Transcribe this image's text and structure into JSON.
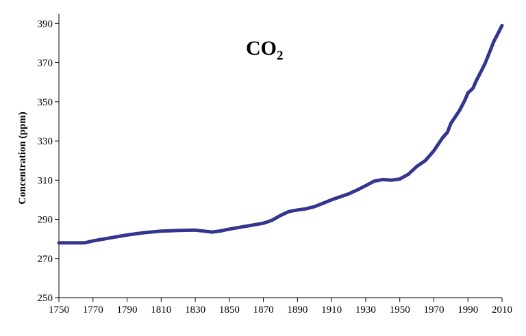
{
  "chart_data": {
    "type": "line",
    "title": "CO",
    "title_subscript": "2",
    "xlabel": "",
    "ylabel": "Concentration (ppm)",
    "xlim": [
      1750,
      2010
    ],
    "ylim": [
      250,
      395
    ],
    "grid": false,
    "x_ticks": [
      1750,
      1770,
      1790,
      1810,
      1830,
      1850,
      1870,
      1890,
      1910,
      1930,
      1950,
      1970,
      1990,
      2010
    ],
    "y_ticks": [
      250,
      270,
      290,
      310,
      330,
      350,
      370,
      390
    ],
    "colors": {
      "line": "#33358f",
      "axis": "#000000"
    },
    "series": [
      {
        "x": [
          1750,
          1760,
          1765,
          1770,
          1780,
          1790,
          1800,
          1810,
          1820,
          1830,
          1835,
          1840,
          1845,
          1850,
          1860,
          1870,
          1875,
          1880,
          1885,
          1890,
          1895,
          1900,
          1905,
          1910,
          1915,
          1920,
          1925,
          1930,
          1935,
          1940,
          1945,
          1950,
          1955,
          1960,
          1965,
          1970,
          1975,
          1978,
          1980,
          1985,
          1988,
          1990,
          1993,
          1995,
          1998,
          2000,
          2003,
          2005,
          2008,
          2010
        ],
        "values": [
          278,
          278,
          278,
          279,
          280.5,
          282,
          283.2,
          284,
          284.3,
          284.5,
          284,
          283.5,
          284.1,
          285,
          286.5,
          288,
          289.5,
          292,
          294,
          294.8,
          295.4,
          296.5,
          298.2,
          300,
          301.5,
          303,
          305,
          307.2,
          309.5,
          310.3,
          310,
          310.6,
          313,
          317,
          320,
          325,
          331.5,
          334.5,
          339,
          345.5,
          350.5,
          354.5,
          357,
          361,
          366,
          369.5,
          376,
          380.5,
          385.5,
          389
        ]
      }
    ]
  }
}
